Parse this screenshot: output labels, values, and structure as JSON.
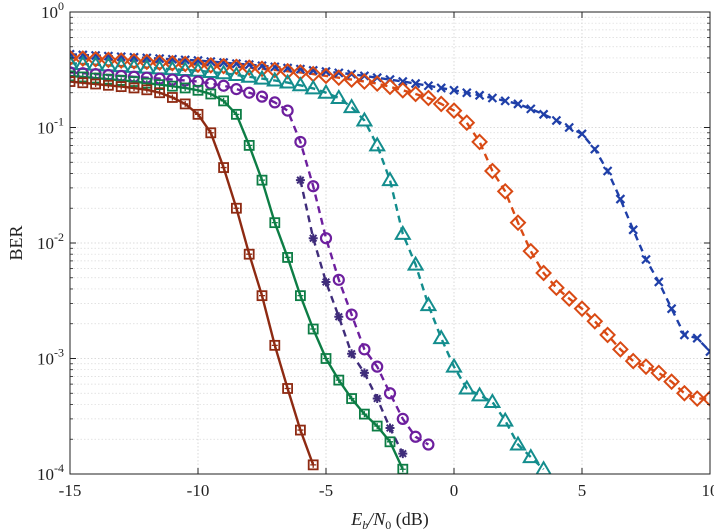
{
  "chart_data": {
    "type": "line",
    "title": "",
    "xlabel": "E_b/N_0 (dB)",
    "xlabel_parts": {
      "E": "E",
      "b": "b",
      "N": "/N",
      "zero": "0",
      "unit": " (dB)"
    },
    "ylabel": "BER",
    "xlim": [
      -15,
      10
    ],
    "ylim_log10": [
      -4,
      0
    ],
    "y_scale": "log",
    "grid": true,
    "x_ticks": [
      -15,
      -10,
      -5,
      0,
      5,
      10
    ],
    "x_tick_labels": [
      "-15",
      "-10",
      "-5",
      "0",
      "5",
      "10"
    ],
    "y_ticks_log10": [
      -4,
      -3,
      -2,
      -1,
      0
    ],
    "y_tick_labels": [
      {
        "base": "10",
        "exp": "-4"
      },
      {
        "base": "10",
        "exp": "-3"
      },
      {
        "base": "10",
        "exp": "-2"
      },
      {
        "base": "10",
        "exp": "-1"
      },
      {
        "base": "10",
        "exp": "0"
      }
    ],
    "series": [
      {
        "name": "x-dashed-blue",
        "color": "#1f3fa8",
        "marker": "x",
        "dashed": true,
        "x": [
          -15,
          -14.5,
          -14,
          -13.5,
          -13,
          -12.5,
          -12,
          -11.5,
          -11,
          -10.5,
          -10,
          -9.5,
          -9,
          -8.5,
          -8,
          -7.5,
          -7,
          -6.5,
          -6,
          -5.5,
          -5,
          -4.5,
          -4,
          -3.5,
          -3,
          -2.5,
          -2,
          -1.5,
          -1,
          -0.5,
          0,
          0.5,
          1,
          1.5,
          2,
          2.5,
          3,
          3.5,
          4,
          4.5,
          5,
          5.5,
          6,
          6.5,
          7,
          7.5,
          8,
          8.5,
          9,
          9.5,
          10
        ],
        "y": [
          0.43,
          0.425,
          0.42,
          0.415,
          0.41,
          0.405,
          0.4,
          0.395,
          0.39,
          0.385,
          0.38,
          0.372,
          0.365,
          0.357,
          0.35,
          0.342,
          0.335,
          0.327,
          0.32,
          0.312,
          0.305,
          0.297,
          0.29,
          0.28,
          0.27,
          0.26,
          0.25,
          0.24,
          0.23,
          0.22,
          0.21,
          0.2,
          0.19,
          0.18,
          0.17,
          0.16,
          0.145,
          0.13,
          0.115,
          0.1,
          0.088,
          0.065,
          0.042,
          0.024,
          0.013,
          0.0072,
          0.0046,
          0.0027,
          0.0016,
          0.0015,
          0.00115
        ]
      },
      {
        "name": "diamond-dashed-orange",
        "color": "#d94a14",
        "marker": "diamond",
        "dashed": true,
        "x": [
          -15,
          -14.5,
          -14,
          -13.5,
          -13,
          -12.5,
          -12,
          -11.5,
          -11,
          -10.5,
          -10,
          -9.5,
          -9,
          -8.5,
          -8,
          -7.5,
          -7,
          -6.5,
          -6,
          -5.5,
          -5,
          -4.5,
          -4,
          -3.5,
          -3,
          -2.5,
          -2,
          -1.5,
          -1,
          -0.5,
          0,
          0.5,
          1,
          1.5,
          2,
          2.5,
          3,
          3.5,
          4,
          4.5,
          5,
          5.5,
          6,
          6.5,
          7,
          7.5,
          8,
          8.5,
          9,
          9.5,
          10
        ],
        "y": [
          0.4,
          0.395,
          0.39,
          0.385,
          0.38,
          0.375,
          0.37,
          0.365,
          0.36,
          0.355,
          0.35,
          0.345,
          0.34,
          0.335,
          0.33,
          0.322,
          0.315,
          0.307,
          0.3,
          0.29,
          0.28,
          0.27,
          0.26,
          0.25,
          0.24,
          0.225,
          0.21,
          0.195,
          0.18,
          0.16,
          0.14,
          0.11,
          0.075,
          0.042,
          0.028,
          0.015,
          0.0085,
          0.0055,
          0.0041,
          0.0033,
          0.0027,
          0.0021,
          0.0016,
          0.0012,
          0.00095,
          0.00085,
          0.00075,
          0.00063,
          0.0005,
          0.00045,
          0.00045
        ]
      },
      {
        "name": "triangle-dashed-teal",
        "color": "#138d8d",
        "marker": "triangle",
        "dashed": true,
        "x": [
          -15,
          -14.5,
          -14,
          -13.5,
          -13,
          -12.5,
          -12,
          -11.5,
          -11,
          -10.5,
          -10,
          -9.5,
          -9,
          -8.5,
          -8,
          -7.5,
          -7,
          -6.5,
          -6,
          -5.5,
          -5,
          -4.5,
          -4,
          -3.5,
          -3,
          -2.5,
          -2,
          -1.5,
          -1,
          -0.5,
          0,
          0.5,
          1,
          1.5,
          2,
          2.5,
          3,
          3.5
        ],
        "y": [
          0.36,
          0.355,
          0.35,
          0.345,
          0.34,
          0.335,
          0.33,
          0.325,
          0.32,
          0.315,
          0.31,
          0.302,
          0.295,
          0.285,
          0.275,
          0.265,
          0.255,
          0.245,
          0.232,
          0.218,
          0.2,
          0.18,
          0.15,
          0.115,
          0.07,
          0.035,
          0.012,
          0.0065,
          0.0029,
          0.0015,
          0.00085,
          0.00055,
          0.00048,
          0.00042,
          0.00029,
          0.00018,
          0.00014,
          0.00011
        ]
      },
      {
        "name": "circle-dashed-purple",
        "color": "#6d1f9e",
        "marker": "circle-open",
        "dashed": true,
        "x": [
          -15,
          -14.5,
          -14,
          -13.5,
          -13,
          -12.5,
          -12,
          -11.5,
          -11,
          -10.5,
          -10,
          -9.5,
          -9,
          -8.5,
          -8,
          -7.5,
          -7,
          -6.5,
          -6,
          -5.5,
          -5,
          -4.5,
          -4,
          -3.5,
          -3,
          -2.5,
          -2,
          -1.5,
          -1
        ],
        "y": [
          0.3,
          0.295,
          0.29,
          0.285,
          0.28,
          0.275,
          0.27,
          0.265,
          0.26,
          0.255,
          0.25,
          0.24,
          0.23,
          0.215,
          0.2,
          0.185,
          0.165,
          0.14,
          0.075,
          0.031,
          0.011,
          0.0048,
          0.0024,
          0.0012,
          0.00085,
          0.0005,
          0.0003,
          0.00021,
          0.00018
        ]
      },
      {
        "name": "asterisk-dashed-purple",
        "color": "#3f2c7a",
        "marker": "asterisk",
        "dashed": true,
        "x": [
          -6,
          -5.5,
          -5,
          -4.5,
          -4,
          -3.5,
          -3,
          -2.5,
          -2
        ],
        "y": [
          0.035,
          0.011,
          0.0046,
          0.0023,
          0.0011,
          0.00075,
          0.00045,
          0.00025,
          0.00015
        ]
      },
      {
        "name": "square-solid-green",
        "color": "#0d7d45",
        "marker": "square-plus",
        "dashed": false,
        "x": [
          -15,
          -14.5,
          -14,
          -13.5,
          -13,
          -12.5,
          -12,
          -11.5,
          -11,
          -10.5,
          -10,
          -9.5,
          -9,
          -8.5,
          -8,
          -7.5,
          -7,
          -6.5,
          -6,
          -5.5,
          -5,
          -4.5,
          -4,
          -3.5,
          -3,
          -2.5,
          -2
        ],
        "y": [
          0.28,
          0.274,
          0.268,
          0.262,
          0.256,
          0.25,
          0.242,
          0.235,
          0.228,
          0.22,
          0.21,
          0.195,
          0.17,
          0.13,
          0.07,
          0.035,
          0.015,
          0.0075,
          0.0035,
          0.0018,
          0.001,
          0.00065,
          0.00045,
          0.00033,
          0.00026,
          0.00019,
          0.00011
        ]
      },
      {
        "name": "square-solid-brown",
        "color": "#8e2a12",
        "marker": "square-plus",
        "dashed": false,
        "x": [
          -15,
          -14.5,
          -14,
          -13.5,
          -13,
          -12.5,
          -12,
          -11.5,
          -11,
          -10.5,
          -10,
          -9.5,
          -9,
          -8.5,
          -8,
          -7.5,
          -7,
          -6.5,
          -6,
          -5.5
        ],
        "y": [
          0.25,
          0.244,
          0.238,
          0.232,
          0.226,
          0.22,
          0.212,
          0.2,
          0.182,
          0.16,
          0.13,
          0.09,
          0.045,
          0.02,
          0.008,
          0.0035,
          0.0013,
          0.00055,
          0.00024,
          0.00012
        ]
      }
    ]
  }
}
